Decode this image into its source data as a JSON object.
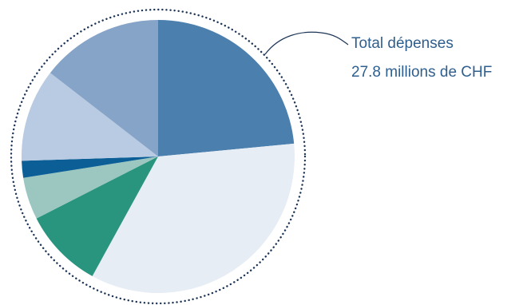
{
  "chart_data": {
    "type": "pie",
    "title": "",
    "annotation": {
      "line1": "Total dépenses",
      "line2": "27.8 millions de CHF"
    },
    "start_angle_deg": 0,
    "direction": "clockwise",
    "slices": [
      {
        "value": 23.5,
        "color": "#4a7fae"
      },
      {
        "value": 34.5,
        "color": "#e7edf5"
      },
      {
        "value": 9.5,
        "color": "#2a957e"
      },
      {
        "value": 5.0,
        "color": "#9cc7c0"
      },
      {
        "value": 2.0,
        "color": "#0b5f96"
      },
      {
        "value": 11.0,
        "color": "#b9cbe2"
      },
      {
        "value": 14.5,
        "color": "#86a4c8"
      }
    ]
  }
}
